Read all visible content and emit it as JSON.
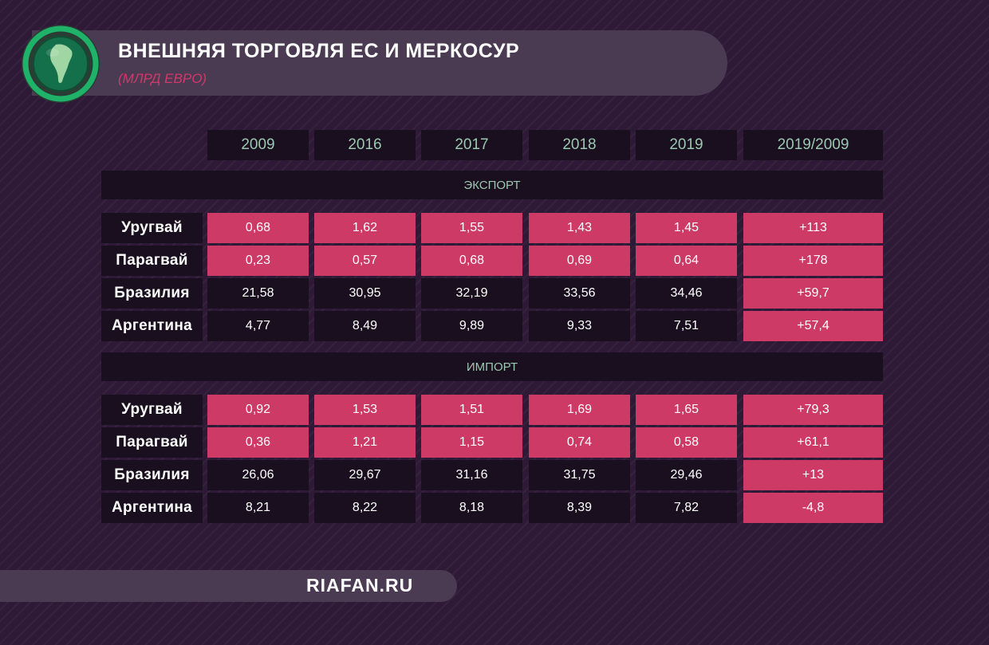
{
  "header": {
    "title": "ВНЕШНЯЯ ТОРГОВЛЯ ЕС И МЕРКОСУР",
    "subtitle": "(МЛРД ЕВРО)"
  },
  "footer": {
    "site": "RIAFAN.RU"
  },
  "logo": {
    "icon": "globe-south-america-icon"
  },
  "colors": {
    "highlight": "#ce3a66",
    "cell_dark": "#1a0f1f",
    "year_text": "#9bc8b0"
  },
  "chart_data": {
    "type": "table",
    "title": "ВНЕШНЯЯ ТОРГОВЛЯ ЕС И МЕРКОСУР",
    "subtitle": "(МЛРД ЕВРО)",
    "columns": [
      "2009",
      "2016",
      "2017",
      "2018",
      "2019",
      "2019/2009"
    ],
    "sections": [
      {
        "name": "ЭКСПОРТ",
        "rows": [
          {
            "label": "Уругвай",
            "values": [
              "0,68",
              "1,62",
              "1,55",
              "1,43",
              "1,45",
              "+113"
            ],
            "highlight": [
              true,
              true,
              true,
              true,
              true,
              true
            ]
          },
          {
            "label": "Парагвай",
            "values": [
              "0,23",
              "0,57",
              "0,68",
              "0,69",
              "0,64",
              "+178"
            ],
            "highlight": [
              true,
              true,
              true,
              true,
              true,
              true
            ]
          },
          {
            "label": "Бразилия",
            "values": [
              "21,58",
              "30,95",
              "32,19",
              "33,56",
              "34,46",
              "+59,7"
            ],
            "highlight": [
              false,
              false,
              false,
              false,
              false,
              true
            ]
          },
          {
            "label": "Аргентина",
            "values": [
              "4,77",
              "8,49",
              "9,89",
              "9,33",
              "7,51",
              "+57,4"
            ],
            "highlight": [
              false,
              false,
              false,
              false,
              false,
              true
            ]
          }
        ]
      },
      {
        "name": "ИМПОРТ",
        "rows": [
          {
            "label": "Уругвай",
            "values": [
              "0,92",
              "1,53",
              "1,51",
              "1,69",
              "1,65",
              "+79,3"
            ],
            "highlight": [
              true,
              true,
              true,
              true,
              true,
              true
            ]
          },
          {
            "label": "Парагвай",
            "values": [
              "0,36",
              "1,21",
              "1,15",
              "0,74",
              "0,58",
              "+61,1"
            ],
            "highlight": [
              true,
              true,
              true,
              true,
              true,
              true
            ]
          },
          {
            "label": "Бразилия",
            "values": [
              "26,06",
              "29,67",
              "31,16",
              "31,75",
              "29,46",
              "+13"
            ],
            "highlight": [
              false,
              false,
              false,
              false,
              false,
              true
            ]
          },
          {
            "label": "Аргентина",
            "values": [
              "8,21",
              "8,22",
              "8,18",
              "8,39",
              "7,82",
              "-4,8"
            ],
            "highlight": [
              false,
              false,
              false,
              false,
              false,
              true
            ]
          }
        ]
      }
    ]
  }
}
